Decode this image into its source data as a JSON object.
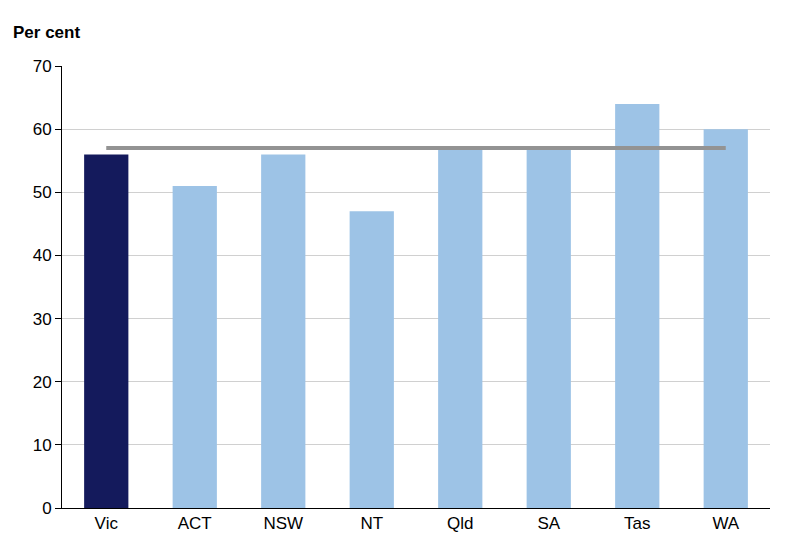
{
  "chart_data": {
    "type": "bar",
    "y_label": "Per cent",
    "categories": [
      "Vic",
      "ACT",
      "NSW",
      "NT",
      "Qld",
      "SA",
      "Tas",
      "WA"
    ],
    "series": [
      {
        "type": "bar",
        "colors": [
          "#141a5c",
          "#9dc3e6",
          "#9dc3e6",
          "#9dc3e6",
          "#9dc3e6",
          "#9dc3e6",
          "#9dc3e6",
          "#9dc3e6"
        ],
        "values": [
          56,
          51,
          56,
          47,
          57,
          57,
          64,
          60
        ]
      },
      {
        "type": "line",
        "color": "#939393",
        "values": [
          57,
          57,
          57,
          57,
          57,
          57,
          57,
          57
        ]
      }
    ],
    "ylim": [
      0,
      70
    ],
    "yticks": [
      0,
      10,
      20,
      30,
      40,
      50,
      60,
      70
    ],
    "grid": true
  }
}
